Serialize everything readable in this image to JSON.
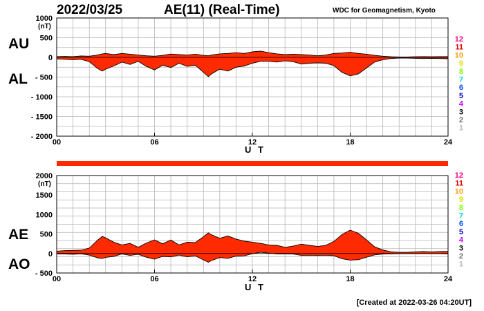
{
  "header": {
    "date": "2022/03/25",
    "title": "AE(11) (Real-Time)",
    "org": "WDC for Geomagnetism, Kyoto"
  },
  "footer": {
    "created": "[Created at 2022-03-26 04:20UT]"
  },
  "colors": {
    "fill": "#ff2a00",
    "line": "#000000",
    "grid": "#b4b4b4",
    "station_levels": [
      "#ff0080",
      "#e00000",
      "#ffa000",
      "#e0e000",
      "#80ff00",
      "#00d8d8",
      "#0050ff",
      "#0000c8",
      "#c800ff",
      "#000000",
      "#707070",
      "#bbbbbb"
    ]
  },
  "station_levels": [
    "12",
    "11",
    "10",
    "9",
    "8",
    "7",
    "6",
    "5",
    "4",
    "3",
    "2",
    "1"
  ],
  "chart_data": [
    {
      "type": "area",
      "series": [
        {
          "name": "AU",
          "x": [
            0,
            0.5,
            1,
            1.5,
            2,
            2.5,
            2.8,
            3,
            3.5,
            4,
            4.5,
            5,
            5.5,
            6,
            6.5,
            7,
            7.5,
            8,
            8.5,
            9,
            9.3,
            9.5,
            10,
            10.5,
            11,
            11.5,
            12,
            12.5,
            13,
            13.5,
            14,
            14.5,
            15,
            15.5,
            16,
            16.5,
            17,
            17.5,
            18,
            18.5,
            19,
            19.5,
            20,
            20.5,
            21,
            21.5,
            22,
            22.5,
            23,
            23.5,
            24
          ],
          "values": [
            20,
            25,
            20,
            35,
            30,
            60,
            90,
            100,
            70,
            100,
            80,
            60,
            40,
            30,
            50,
            85,
            70,
            60,
            80,
            50,
            40,
            60,
            90,
            100,
            120,
            100,
            140,
            160,
            120,
            90,
            70,
            80,
            70,
            60,
            40,
            60,
            100,
            110,
            130,
            100,
            80,
            50,
            30,
            15,
            10,
            10,
            15,
            20,
            15,
            20,
            20
          ]
        },
        {
          "name": "AL",
          "x": [
            0,
            0.5,
            1,
            1.5,
            2,
            2.5,
            2.8,
            3,
            3.5,
            4,
            4.5,
            5,
            5.5,
            6,
            6.5,
            7,
            7.5,
            8,
            8.5,
            9,
            9.3,
            9.5,
            10,
            10.5,
            11,
            11.5,
            12,
            12.5,
            13,
            13.5,
            14,
            14.5,
            15,
            15.5,
            16,
            16.5,
            17,
            17.5,
            18,
            18.5,
            19,
            19.5,
            20,
            20.5,
            21,
            21.5,
            22,
            22.5,
            23,
            23.5,
            24
          ],
          "values": [
            -40,
            -50,
            -60,
            -50,
            -110,
            -280,
            -350,
            -300,
            -220,
            -120,
            -180,
            -100,
            -230,
            -320,
            -200,
            -260,
            -150,
            -230,
            -200,
            -380,
            -490,
            -420,
            -300,
            -350,
            -250,
            -220,
            -150,
            -100,
            -100,
            -120,
            -90,
            -110,
            -170,
            -150,
            -140,
            -150,
            -210,
            -380,
            -470,
            -420,
            -270,
            -120,
            -60,
            -30,
            -20,
            -20,
            -25,
            -30,
            -25,
            -30,
            -35
          ]
        }
      ],
      "xlabel": "U T",
      "ylabel": "(nT)",
      "xlim": [
        0,
        24
      ],
      "ylim": [
        -2000,
        1000
      ],
      "x_ticks": [
        0,
        6,
        12,
        18,
        24
      ],
      "x_tick_labels": [
        "00",
        "06",
        "12",
        "18",
        "24"
      ],
      "y_ticks": [
        1000,
        500,
        0,
        -500,
        -1000,
        -1500,
        -2000
      ],
      "y_tick_labels": [
        "1000",
        "500",
        "0",
        "- 500",
        "- 1000",
        "- 1500",
        "- 2000"
      ],
      "series_labels": [
        "AU",
        "AL"
      ],
      "grid": true
    },
    {
      "type": "area",
      "series": [
        {
          "name": "AE",
          "x": [
            0,
            0.5,
            1,
            1.5,
            2,
            2.5,
            2.8,
            3,
            3.5,
            4,
            4.5,
            5,
            5.5,
            6,
            6.5,
            7,
            7.5,
            8,
            8.5,
            9,
            9.3,
            9.5,
            10,
            10.5,
            11,
            11.5,
            12,
            12.5,
            13,
            13.5,
            14,
            14.5,
            15,
            15.5,
            16,
            16.5,
            17,
            17.5,
            18,
            18.5,
            19,
            19.5,
            20,
            20.5,
            21,
            21.5,
            22,
            22.5,
            23,
            23.5,
            24
          ],
          "values": [
            60,
            75,
            80,
            85,
            140,
            340,
            440,
            400,
            290,
            220,
            260,
            160,
            270,
            350,
            250,
            345,
            220,
            290,
            280,
            430,
            530,
            480,
            390,
            450,
            370,
            320,
            290,
            260,
            220,
            210,
            160,
            190,
            240,
            210,
            180,
            210,
            310,
            490,
            600,
            520,
            350,
            170,
            90,
            45,
            30,
            30,
            40,
            50,
            40,
            50,
            55
          ]
        },
        {
          "name": "AO",
          "x": [
            0,
            0.5,
            1,
            1.5,
            2,
            2.5,
            2.8,
            3,
            3.5,
            4,
            4.5,
            5,
            5.5,
            6,
            6.5,
            7,
            7.5,
            8,
            8.5,
            9,
            9.3,
            9.5,
            10,
            10.5,
            11,
            11.5,
            12,
            12.5,
            13,
            13.5,
            14,
            14.5,
            15,
            15.5,
            16,
            16.5,
            17,
            17.5,
            18,
            18.5,
            19,
            19.5,
            20,
            20.5,
            21,
            21.5,
            22,
            22.5,
            23,
            23.5,
            24
          ],
          "values": [
            -10,
            -13,
            -20,
            -8,
            -40,
            -110,
            -130,
            -100,
            -75,
            -10,
            -50,
            -20,
            -95,
            -145,
            -75,
            -87,
            -40,
            -85,
            -60,
            -165,
            -225,
            -180,
            -105,
            -125,
            -65,
            -60,
            -5,
            30,
            10,
            -15,
            -10,
            -15,
            -50,
            -45,
            -50,
            -45,
            -55,
            -135,
            -170,
            -160,
            -95,
            -35,
            -15,
            -8,
            -5,
            -5,
            -5,
            -5,
            -5,
            -5,
            -8
          ]
        }
      ],
      "xlabel": "U T",
      "ylabel": "(nT)",
      "xlim": [
        0,
        24
      ],
      "ylim": [
        -500,
        2000
      ],
      "x_ticks": [
        0,
        6,
        12,
        18,
        24
      ],
      "x_tick_labels": [
        "00",
        "06",
        "12",
        "18",
        "24"
      ],
      "y_ticks": [
        2000,
        1500,
        1000,
        500,
        0,
        -500
      ],
      "y_tick_labels": [
        "2000",
        "1500",
        "1000",
        "500",
        "0",
        "- 500"
      ],
      "series_labels": [
        "AE",
        "AO"
      ],
      "grid": true
    }
  ]
}
